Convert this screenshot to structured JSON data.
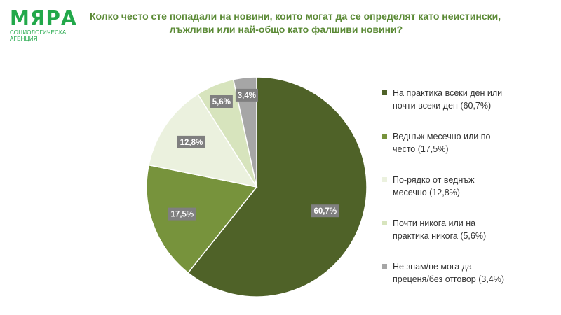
{
  "logo": {
    "name": "МЯРА",
    "subtitle": "СОЦИОЛОГИЧЕСКА АГЕНЦИЯ"
  },
  "title_lines": [
    "Колко често сте попадали на новини, които могат да се определят като неистински,",
    "лъжливи или най-общо като фалшиви новини?"
  ],
  "colors": {
    "logo": "#22a84a",
    "title": "#5b8a36",
    "label_bg": "#7f7f7f"
  },
  "chart_data": {
    "type": "pie",
    "unit": "%",
    "slices": [
      {
        "value": 60.7,
        "data_label": "60,7%",
        "color": "#4f6228",
        "legend_lines": [
          "На практика всеки ден или",
          "почти всеки ден (60,7%)"
        ]
      },
      {
        "value": 17.5,
        "data_label": "17,5%",
        "color": "#77933c",
        "legend_lines": [
          "Веднъж месечно или по-",
          "често (17,5%)"
        ]
      },
      {
        "value": 12.8,
        "data_label": "12,8%",
        "color": "#ebf1de",
        "legend_lines": [
          "По-рядко от веднъж",
          "месечно (12,8%)"
        ]
      },
      {
        "value": 5.6,
        "data_label": "5,6%",
        "color": "#d7e4bd",
        "legend_lines": [
          "Почти никога или на",
          "практика никога (5,6%)"
        ]
      },
      {
        "value": 3.4,
        "data_label": "3,4%",
        "color": "#a6a6a6",
        "legend_lines": [
          "Не знам/не мога да",
          "преценя/без отговор (3,4%)"
        ]
      }
    ],
    "start": "12 o'clock",
    "direction": "clockwise",
    "legend_position": "right"
  }
}
